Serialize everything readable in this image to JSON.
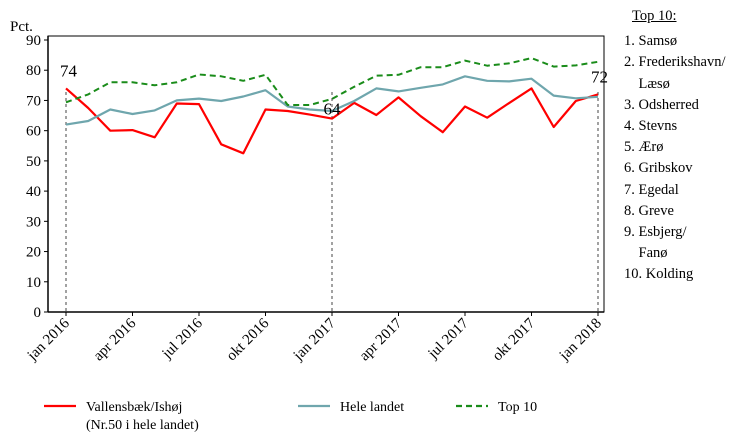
{
  "chart_data": {
    "type": "line",
    "ylabel": "Pct.",
    "ylim": [
      0,
      90
    ],
    "yticks": [
      0,
      10,
      20,
      30,
      40,
      50,
      60,
      70,
      80,
      90
    ],
    "x": [
      "jan 2016",
      "feb 2016",
      "mar 2016",
      "apr 2016",
      "maj 2016",
      "jun 2016",
      "jul 2016",
      "aug 2016",
      "sep 2016",
      "okt 2016",
      "nov 2016",
      "dec 2016",
      "jan 2017",
      "feb 2017",
      "mar 2017",
      "apr 2017",
      "maj 2017",
      "jun 2017",
      "jul 2017",
      "aug 2017",
      "sep 2017",
      "okt 2017",
      "nov 2017",
      "dec 2017",
      "jan 2018"
    ],
    "xtick_labels": [
      "jan 2016",
      "apr 2016",
      "jul 2016",
      "okt 2016",
      "jan 2017",
      "apr 2017",
      "jul 2017",
      "okt 2017",
      "jan 2018"
    ],
    "xtick_index": [
      0,
      3,
      6,
      9,
      12,
      15,
      18,
      21,
      24
    ],
    "series": [
      {
        "name": "Vallensbæk/Ishøj",
        "name_sub": "(Nr.50 i hele landet)",
        "color": "#ff0000",
        "dash": "solid",
        "values": [
          74,
          67.5,
          60,
          60.2,
          57.8,
          69,
          68.8,
          55.5,
          52.5,
          67,
          66.5,
          65.3,
          64,
          69.2,
          65.2,
          71,
          64.8,
          59.5,
          68,
          64.3,
          69.2,
          74,
          61.2,
          69.8,
          72
        ]
      },
      {
        "name": "Hele landet",
        "color": "#6fa6ad",
        "dash": "solid",
        "values": [
          62,
          63.2,
          67,
          65.5,
          66.7,
          70,
          70.6,
          69.8,
          71.3,
          73.4,
          68,
          67,
          66.5,
          69.8,
          74,
          73,
          74.2,
          75.3,
          78,
          76.5,
          76.3,
          77.2,
          71.6,
          70.7,
          71.2
        ]
      },
      {
        "name": "Top 10",
        "color": "#1a8c1a",
        "dash": "dashed",
        "values": [
          69.4,
          72,
          76,
          76,
          75,
          76,
          78.6,
          78,
          76.5,
          78.5,
          68.5,
          68.5,
          70.5,
          74.5,
          78.2,
          78.5,
          81,
          81,
          83.2,
          81.5,
          82.3,
          84,
          81.2,
          81.6,
          82.8
        ]
      }
    ],
    "annotations": [
      {
        "text": "74",
        "x": "jan 2016",
        "y": 74
      },
      {
        "text": "64",
        "x": "jan 2017",
        "y": 64
      },
      {
        "text": "72",
        "x": "jan 2018",
        "y": 72
      }
    ],
    "vlines": [
      "jan 2016",
      "jan 2017",
      "jan 2018"
    ],
    "legend_position": "bottom"
  },
  "side_list": {
    "title": "Top 10:",
    "items": [
      "1. Samsø",
      "2. Frederikshavn/",
      "    Læsø",
      "3. Odsherred",
      "4. Stevns",
      "5. Ærø",
      "6. Gribskov",
      "7. Egedal",
      "8. Greve",
      "9. Esbjerg/",
      "    Fanø",
      "10. Kolding"
    ]
  }
}
